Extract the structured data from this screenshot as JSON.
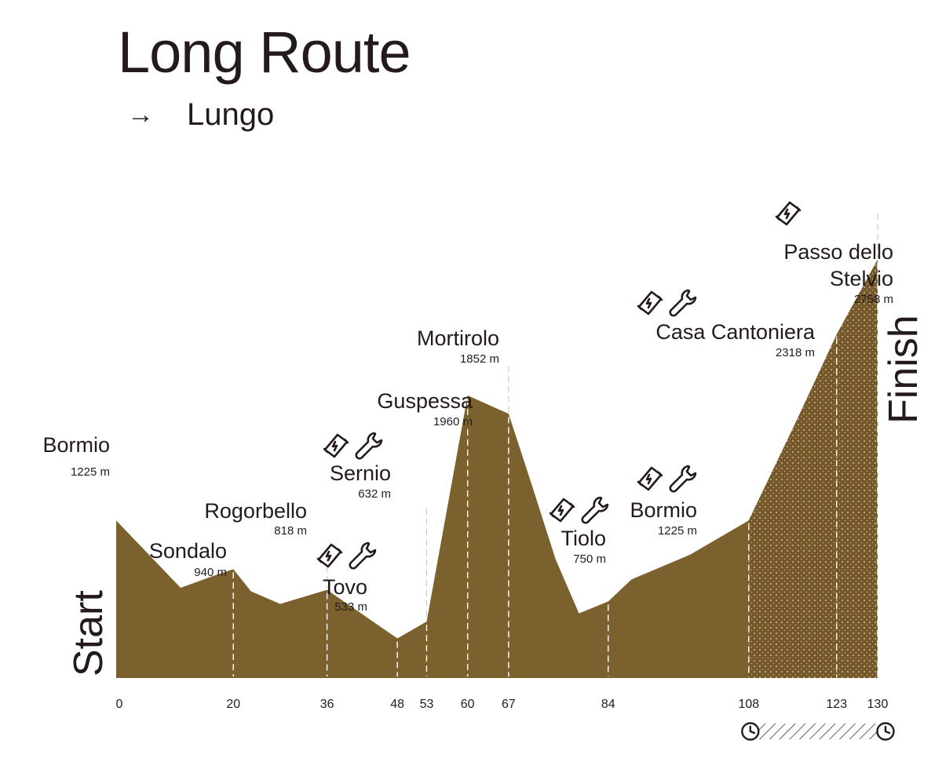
{
  "title": "Long Route",
  "subtitle": {
    "arrow": "→",
    "text": "Lungo"
  },
  "colors": {
    "profile_fill": "#7b612d",
    "timed_fill": "#75592a",
    "text": "#241a1c"
  },
  "chart_data": {
    "type": "area",
    "xlabel": "",
    "ylabel": "",
    "x_unit": "km",
    "y_unit": "m",
    "xlim": [
      0,
      130
    ],
    "ylim": [
      300,
      2900
    ],
    "start_label": "Start",
    "finish_label": "Finish",
    "x_ticks": [
      0,
      20,
      36,
      48,
      53,
      60,
      67,
      84,
      108,
      123,
      130
    ],
    "profile": [
      {
        "x": 0,
        "y": 1225
      },
      {
        "x": 11,
        "y": 830
      },
      {
        "x": 17,
        "y": 905
      },
      {
        "x": 20,
        "y": 940
      },
      {
        "x": 23,
        "y": 810
      },
      {
        "x": 28,
        "y": 735
      },
      {
        "x": 36,
        "y": 818
      },
      {
        "x": 48,
        "y": 533
      },
      {
        "x": 53,
        "y": 632
      },
      {
        "x": 60,
        "y": 1960
      },
      {
        "x": 67,
        "y": 1852
      },
      {
        "x": 71,
        "y": 1430
      },
      {
        "x": 75,
        "y": 1000
      },
      {
        "x": 79,
        "y": 680
      },
      {
        "x": 84,
        "y": 750
      },
      {
        "x": 88,
        "y": 880
      },
      {
        "x": 98,
        "y": 1025
      },
      {
        "x": 108,
        "y": 1225
      },
      {
        "x": 116,
        "y": 1800
      },
      {
        "x": 123,
        "y": 2318
      },
      {
        "x": 130,
        "y": 2758
      }
    ],
    "points": [
      {
        "name": "Bormio",
        "elev_label": "1225 m",
        "km": 0,
        "elevation": 1225,
        "icons": []
      },
      {
        "name": "Sondalo",
        "elev_label": "940 m",
        "km": 20,
        "elevation": 940,
        "icons": []
      },
      {
        "name": "Rogorbello",
        "elev_label": "818 m",
        "km": 36,
        "elevation": 818,
        "icons": []
      },
      {
        "name": "Tovo",
        "elev_label": "533 m",
        "km": 48,
        "elevation": 533,
        "icons": [
          "feed-icon",
          "wrench-icon"
        ]
      },
      {
        "name": "Sernio",
        "elev_label": "632 m",
        "km": 53,
        "elevation": 632,
        "icons": [
          "feed-icon",
          "wrench-icon"
        ]
      },
      {
        "name": "Guspessa",
        "elev_label": "1960 m",
        "km": 60,
        "elevation": 1960,
        "icons": []
      },
      {
        "name": "Mortirolo",
        "elev_label": "1852 m",
        "km": 67,
        "elevation": 1852,
        "icons": []
      },
      {
        "name": "Tiolo",
        "elev_label": "750 m",
        "km": 84,
        "elevation": 750,
        "icons": [
          "feed-icon",
          "wrench-icon"
        ]
      },
      {
        "name": "Bormio",
        "elev_label": "1225 m",
        "km": 108,
        "elevation": 1225,
        "icons": [
          "feed-icon",
          "wrench-icon"
        ]
      },
      {
        "name": "Casa Cantoniera",
        "elev_label": "2318 m",
        "km": 123,
        "elevation": 2318,
        "icons": [
          "feed-icon",
          "wrench-icon"
        ]
      },
      {
        "name": "Passo dello Stelvio",
        "elev_label": "2758 m",
        "km": 130,
        "elevation": 2758,
        "icons": [
          "feed-icon"
        ]
      }
    ],
    "timed_segment": {
      "from_km": 108,
      "to_km": 130,
      "icon": "clock-icon"
    }
  }
}
